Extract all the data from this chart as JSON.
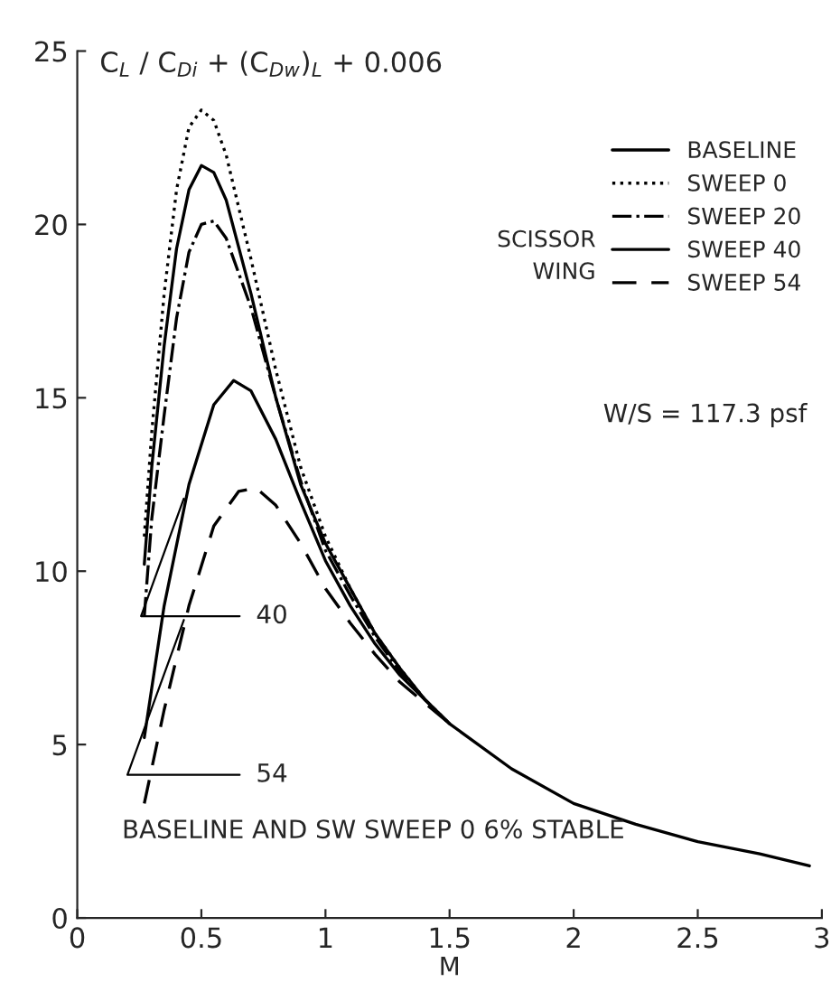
{
  "chart_data": {
    "type": "line",
    "ylabel": "C$_{L}$ / C$_{Di}$ + (C$_{Dw}$)$_{L}$ + 0.006",
    "xlabel": "M",
    "xlim": [
      0,
      3
    ],
    "xticks": [
      0,
      0.5,
      1,
      1.5,
      2,
      2.5,
      3
    ],
    "ylim": [
      0,
      25
    ],
    "yticks": [
      0,
      5,
      10,
      15,
      20,
      25
    ],
    "grid": false,
    "legend": "top right",
    "legend_title": "SCISSOR WING",
    "series": [
      {
        "name": "BASELINE",
        "color": "#000000",
        "line_style": "solid",
        "x": [
          0.27,
          0.3,
          0.35,
          0.4,
          0.45,
          0.5,
          0.55,
          0.6,
          0.7,
          0.8,
          0.9,
          1.0,
          1.1,
          1.2,
          1.3,
          1.4,
          1.5,
          1.75,
          2,
          2.25,
          2.5,
          2.75,
          2.95
        ],
        "values": [
          10.2,
          13,
          16.5,
          19.3,
          21,
          21.7,
          21.5,
          20.7,
          18,
          15,
          12.5,
          10.8,
          9.5,
          8.2,
          7.2,
          6.3,
          5.6,
          4.3,
          3.3,
          2.7,
          2.2,
          1.85,
          1.5
        ]
      },
      {
        "name": "SWEEP 0",
        "color": "#000000",
        "line_style": "dotted",
        "x": [
          0.27,
          0.3,
          0.35,
          0.4,
          0.45,
          0.5,
          0.55,
          0.6,
          0.7,
          0.8,
          0.9,
          1.0,
          1.1,
          1.2,
          1.3,
          1.4,
          1.5
        ],
        "values": [
          11,
          14,
          18,
          21,
          22.8,
          23.3,
          23,
          22,
          19,
          15.8,
          13,
          11,
          9.5,
          8.2,
          7.2,
          6.3,
          5.6
        ]
      },
      {
        "name": "SWEEP 20",
        "color": "#000000",
        "line_style": "dashdot",
        "x": [
          0.27,
          0.3,
          0.35,
          0.4,
          0.45,
          0.5,
          0.55,
          0.6,
          0.7,
          0.8,
          0.9,
          1.0,
          1.1,
          1.2,
          1.3,
          1.4,
          1.5
        ],
        "values": [
          8.7,
          11.5,
          14.5,
          17.3,
          19.2,
          20,
          20.1,
          19.6,
          17.6,
          15,
          12.6,
          10.6,
          9.3,
          8.1,
          7.1,
          6.3,
          5.6
        ]
      },
      {
        "name": "SWEEP 40",
        "color": "#000000",
        "line_style": "solid",
        "x": [
          0.27,
          0.35,
          0.45,
          0.55,
          0.63,
          0.7,
          0.8,
          0.9,
          1.0,
          1.1,
          1.2,
          1.3,
          1.4,
          1.5
        ],
        "values": [
          5.2,
          9,
          12.5,
          14.8,
          15.5,
          15.2,
          13.8,
          12,
          10.3,
          9,
          7.9,
          7,
          6.3,
          5.6
        ]
      },
      {
        "name": "SWEEP 54",
        "color": "#000000",
        "line_style": "dashed",
        "x": [
          0.27,
          0.35,
          0.45,
          0.55,
          0.65,
          0.72,
          0.8,
          0.9,
          1.0,
          1.1,
          1.2,
          1.3,
          1.4,
          1.5
        ],
        "values": [
          3.3,
          6,
          9,
          11.3,
          12.3,
          12.4,
          11.9,
          10.8,
          9.5,
          8.5,
          7.6,
          6.8,
          6.2,
          5.6
        ]
      }
    ],
    "annotations": [
      {
        "text": "40",
        "x": 0.45,
        "y": 12.5
      },
      {
        "text": "54",
        "x": 0.45,
        "y": 9
      },
      "W/S = 117.3 psf",
      "BASELINE AND SW SWEEP 0 6% STABLE"
    ]
  }
}
